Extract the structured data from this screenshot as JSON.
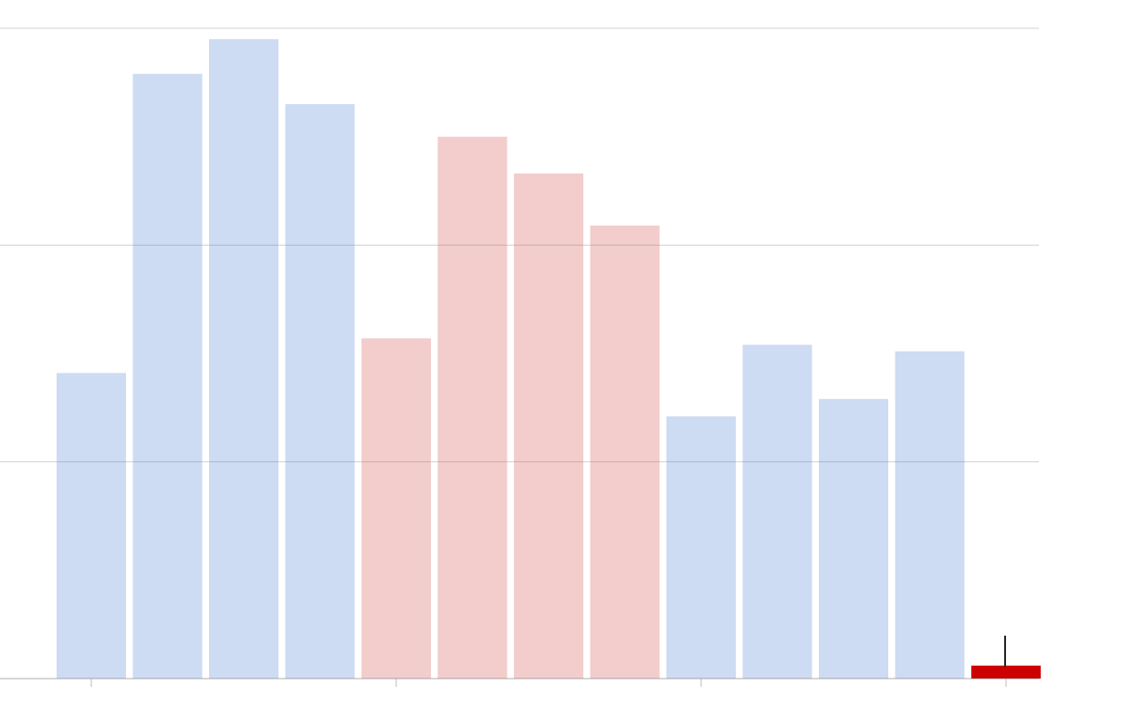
{
  "chart_data": {
    "type": "bar",
    "categories": [
      null,
      null,
      null,
      null,
      null,
      null,
      null,
      null,
      null,
      null,
      null,
      null,
      null
    ],
    "values": [
      1.41,
      2.79,
      2.95,
      2.65,
      1.57,
      2.5,
      2.33,
      2.09,
      1.21,
      1.54,
      1.29,
      1.51,
      0.06
    ],
    "colors": [
      "#cddbf3",
      "#cddbf3",
      "#cddbf3",
      "#cddbf3",
      "#f3cccc",
      "#f3cccc",
      "#f3cccc",
      "#f3cccc",
      "#cddbf3",
      "#cddbf3",
      "#cddbf3",
      "#cddbf3",
      "#cc0000"
    ],
    "ylim": [
      0,
      3
    ],
    "yticks": [
      0,
      1,
      2,
      3
    ],
    "grid": true
  }
}
